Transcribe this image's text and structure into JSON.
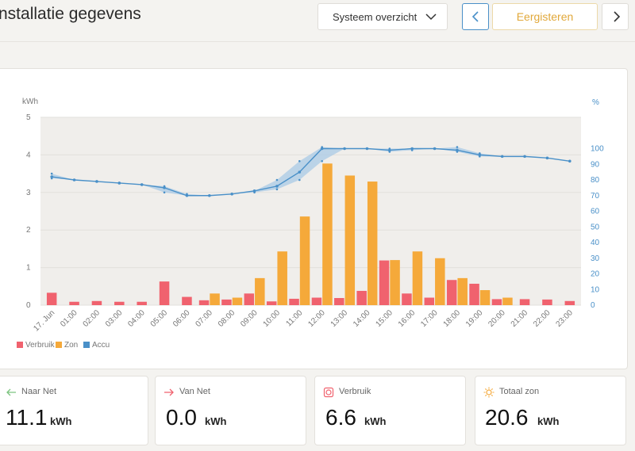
{
  "header": {
    "title": "nstallatie gegevens",
    "view_select": "Systeem overzicht",
    "date_label": "Eergisteren"
  },
  "chart_data": {
    "type": "bar",
    "left_axis": {
      "label": "kWh",
      "ticks": [
        "0",
        "1",
        "2",
        "3",
        "4",
        "5"
      ],
      "ylim": [
        0,
        5
      ]
    },
    "right_axis": {
      "label": "%",
      "ticks": [
        "0",
        "10",
        "20",
        "30",
        "40",
        "50",
        "60",
        "70",
        "80",
        "90",
        "100"
      ],
      "ylim": [
        0,
        120
      ]
    },
    "categories": [
      "17. Jun",
      "01:00",
      "02:00",
      "03:00",
      "04:00",
      "05:00",
      "06:00",
      "07:00",
      "08:00",
      "09:00",
      "10:00",
      "11:00",
      "12:00",
      "13:00",
      "14:00",
      "15:00",
      "16:00",
      "17:00",
      "18:00",
      "19:00",
      "20:00",
      "21:00",
      "22:00",
      "23:00"
    ],
    "grid": true,
    "legend_position": "bottom-left",
    "series": [
      {
        "name": "Verbruik",
        "color": "#f0626e",
        "type": "bar",
        "values": [
          0.33,
          0.09,
          0.11,
          0.09,
          0.09,
          0.63,
          0.22,
          0.13,
          0.15,
          0.31,
          0.1,
          0.17,
          0.2,
          0.19,
          0.38,
          1.19,
          0.31,
          0.2,
          0.67,
          0.57,
          0.16,
          0.16,
          0.15,
          0.11
        ]
      },
      {
        "name": "Zon",
        "color": "#f5a93a",
        "type": "bar",
        "values": [
          0,
          0,
          0,
          0,
          0,
          0,
          0,
          0.31,
          0.2,
          0.72,
          1.43,
          2.36,
          3.77,
          3.45,
          3.29,
          1.2,
          1.43,
          1.25,
          0.72,
          0.4,
          0.2,
          0,
          0,
          0
        ]
      },
      {
        "name": "Accu",
        "color": "#4a90c8",
        "type": "line",
        "axis": "right",
        "values": [
          82,
          80,
          79,
          78,
          77,
          75,
          70,
          70,
          71,
          73,
          76,
          85,
          100,
          100,
          100,
          99,
          100,
          100,
          99,
          96,
          95,
          95,
          94,
          92
        ],
        "range_low": [
          81,
          80,
          79,
          78,
          77,
          72,
          70,
          70,
          71,
          72,
          74,
          80,
          92,
          100,
          100,
          98,
          99,
          100,
          98,
          95,
          95,
          95,
          94,
          92
        ],
        "range_high": [
          84,
          80,
          79,
          78,
          77,
          76,
          71,
          70,
          71,
          73,
          80,
          92,
          101,
          100,
          100,
          100,
          100,
          100,
          101,
          97,
          95,
          95,
          94,
          92
        ]
      }
    ]
  },
  "stats": [
    {
      "label": "Naar Net",
      "value": "11.1",
      "unit": "kWh",
      "icon": "arrow-left-icon",
      "color": "#7cc47f"
    },
    {
      "label": "Van Net",
      "value": "0.0",
      "unit": "kWh",
      "icon": "arrow-right-icon",
      "color": "#f0626e"
    },
    {
      "label": "Verbruik",
      "value": "6.6",
      "unit": "kWh",
      "icon": "consumption-icon",
      "color": "#f0626e"
    },
    {
      "label": "Totaal zon",
      "value": "20.6",
      "unit": "kWh",
      "icon": "sun-icon",
      "color": "#f5a93a"
    }
  ]
}
